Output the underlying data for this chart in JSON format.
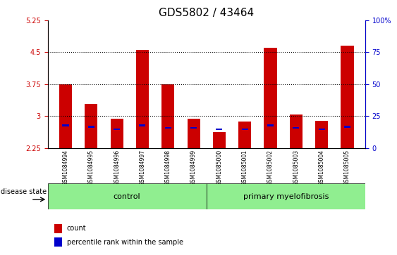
{
  "title": "GDS5802 / 43464",
  "samples": [
    "GSM1084994",
    "GSM1084995",
    "GSM1084996",
    "GSM1084997",
    "GSM1084998",
    "GSM1084999",
    "GSM1085000",
    "GSM1085001",
    "GSM1085002",
    "GSM1085003",
    "GSM1085004",
    "GSM1085005"
  ],
  "count_values": [
    3.74,
    3.28,
    2.93,
    4.55,
    3.75,
    2.93,
    2.62,
    2.87,
    4.6,
    3.04,
    2.88,
    4.65
  ],
  "blue_percentiles": [
    17,
    16,
    14,
    17,
    15,
    15,
    14,
    14,
    17,
    15,
    14,
    16
  ],
  "ylim_left": [
    2.25,
    5.25
  ],
  "yticks_left": [
    2.25,
    3.0,
    3.75,
    4.5,
    5.25
  ],
  "ytick_labels_left": [
    "2.25",
    "3",
    "3.75",
    "4.5",
    "5.25"
  ],
  "ylim_right": [
    0,
    100
  ],
  "yticks_right": [
    0,
    25,
    50,
    75,
    100
  ],
  "ytick_labels_right": [
    "0",
    "25",
    "50",
    "75",
    "100%"
  ],
  "bar_width": 0.5,
  "bar_color_red": "#cc0000",
  "bar_color_blue": "#0000cc",
  "baseline": 2.25,
  "control_samples": 6,
  "disease_state_label": "disease state",
  "group1_label": "control",
  "group2_label": "primary myelofibrosis",
  "legend_count": "count",
  "legend_percentile": "percentile rank within the sample",
  "left_axis_color": "#cc0000",
  "right_axis_color": "#0000cc",
  "grid_color": "black",
  "gridlines": [
    3.0,
    3.75,
    4.5
  ],
  "bg_color_tick": "#d3d3d3",
  "bg_color_green": "#90ee90",
  "title_fontsize": 11,
  "tick_fontsize": 7,
  "label_fontsize": 8
}
